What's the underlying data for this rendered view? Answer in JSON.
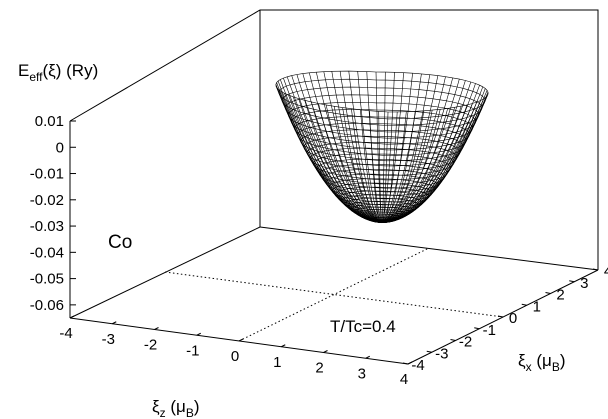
{
  "chart_data": {
    "type": "surface-3d",
    "zlabel": {
      "main": "E",
      "sub": "eff",
      "rest": "(ξ) (Ry)"
    },
    "xlabel": {
      "main": "ξ",
      "sub": "x",
      "rest": " (μ",
      "unit_sub": "B",
      "close": ")"
    },
    "ylabel": {
      "main": "ξ",
      "sub": "z",
      "rest": " (μ",
      "unit_sub": "B",
      "close": ")"
    },
    "z_ticks": [
      "0.01",
      "0",
      "-0.01",
      "-0.02",
      "-0.03",
      "-0.04",
      "-0.05",
      "-0.06"
    ],
    "z_tick_values": [
      0.01,
      0,
      -0.01,
      -0.02,
      -0.03,
      -0.04,
      -0.05,
      -0.06
    ],
    "xi_z_ticks": [
      "-4",
      "-3",
      "-2",
      "-1",
      "0",
      "1",
      "2",
      "3",
      "4"
    ],
    "xi_x_ticks": [
      "-4",
      "-3",
      "-2",
      "-1",
      "0",
      "1",
      "2",
      "3",
      "4"
    ],
    "xi_range": [
      -4,
      4
    ],
    "zlim": [
      -0.065,
      0.01
    ],
    "annotations": {
      "element": "Co",
      "temperature": "T/Tc=0.4"
    },
    "surface": {
      "description_values": "paraboloid-like energy surface",
      "min_energy": -0.03,
      "rim_energy": 0.01
    }
  }
}
